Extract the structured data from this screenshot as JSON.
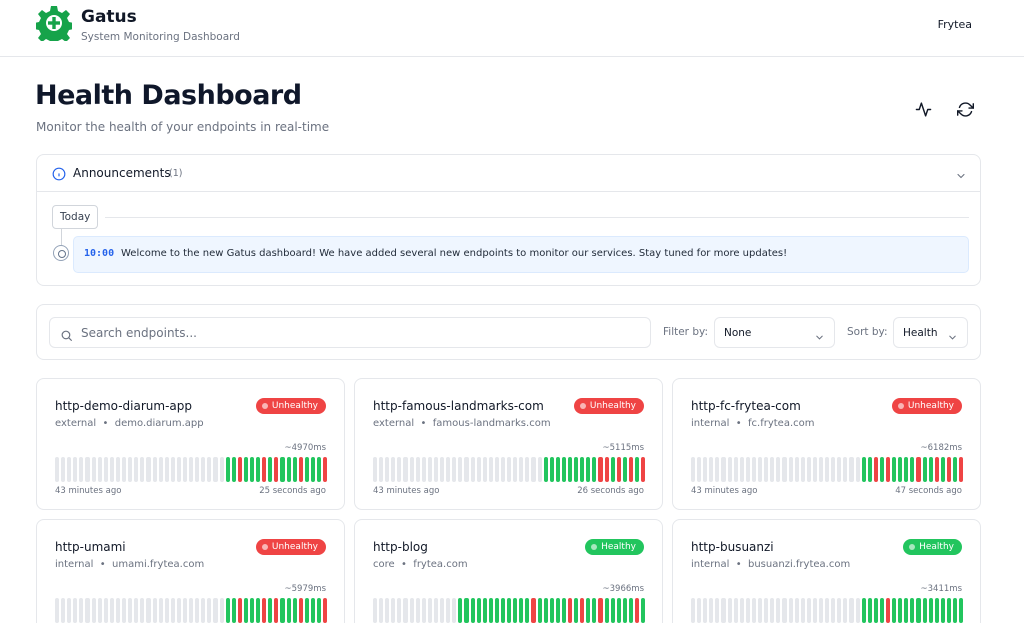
{
  "app": {
    "name": "Gatus",
    "subtitle": "System Monitoring Dashboard",
    "user": "Frytea",
    "logo_color": "#16a34a"
  },
  "page": {
    "title": "Health Dashboard",
    "subtitle": "Monitor the health of your endpoints in real-time",
    "actions": [
      "activity-icon",
      "refresh-icon"
    ]
  },
  "announcements": {
    "title": "Announcements",
    "count": "(1)",
    "group_label": "Today",
    "items": [
      {
        "time": "10:00",
        "text": "Welcome to the new Gatus dashboard! We have added several new endpoints to monitor our services. Stay tuned for more updates!"
      }
    ]
  },
  "search": {
    "placeholder": "Search endpoints...",
    "filter_label": "Filter by:",
    "filter_value": "None",
    "sort_label": "Sort by:",
    "sort_value": "Health"
  },
  "colors": {
    "healthy": "#22c55e",
    "unhealthy": "#ef4444",
    "empty": "#e5e7eb"
  },
  "endpoints": [
    {
      "name": "http-demo-diarum-app",
      "group": "external",
      "host": "demo.diarum.app",
      "status": "Unhealthy",
      "response": "~4970ms",
      "oldest": "43 minutes ago",
      "newest": "25 seconds ago",
      "results": "eeeeeeeeeeeeeeeeeeeeeeeeeeeeeeeeeeeeeeeeggrgggrgrgggrgggr"
    },
    {
      "name": "http-famous-landmarks-com",
      "group": "external",
      "host": "famous-landmarks.com",
      "status": "Unhealthy",
      "response": "~5115ms",
      "oldest": "43 minutes ago",
      "newest": "26 seconds ago",
      "results": "eeeeeeeeeeeeeeeeeeeeeeeeeeeeeeeeeeeeeeeegggggggggrrgrgrgr"
    },
    {
      "name": "http-fc-frytea-com",
      "group": "internal",
      "host": "fc.frytea.com",
      "status": "Unhealthy",
      "response": "~6182ms",
      "oldest": "43 minutes ago",
      "newest": "47 seconds ago",
      "results": "eeeeeeeeeeeeeeeeeeeeeeeeeeeeeeeeeeeeeeeeggrgrggggrggrgrgr"
    },
    {
      "name": "http-umami",
      "group": "internal",
      "host": "umami.frytea.com",
      "status": "Unhealthy",
      "response": "~5979ms",
      "oldest": "",
      "newest": "",
      "results": "eeeeeeeeeeeeeeeeeeeeeeeeeeeeeeeeeeeeeeeeggrgggrgrgggrgggr"
    },
    {
      "name": "http-blog",
      "group": "core",
      "host": "frytea.com",
      "status": "Healthy",
      "response": "~3966ms",
      "oldest": "",
      "newest": "",
      "results": "eeeeeeeeeeeeeeeeeeeeeeeeeeggggggggggggrgggggrgrggrgggggrg"
    },
    {
      "name": "http-busuanzi",
      "group": "internal",
      "host": "busuanzi.frytea.com",
      "status": "Healthy",
      "response": "~3411ms",
      "oldest": "",
      "newest": "",
      "results": "eeeeeeeeeeeeeeeeeeeeeeeeeeeeeeeeeeeeeeeeggggrgggggggggggg"
    }
  ]
}
